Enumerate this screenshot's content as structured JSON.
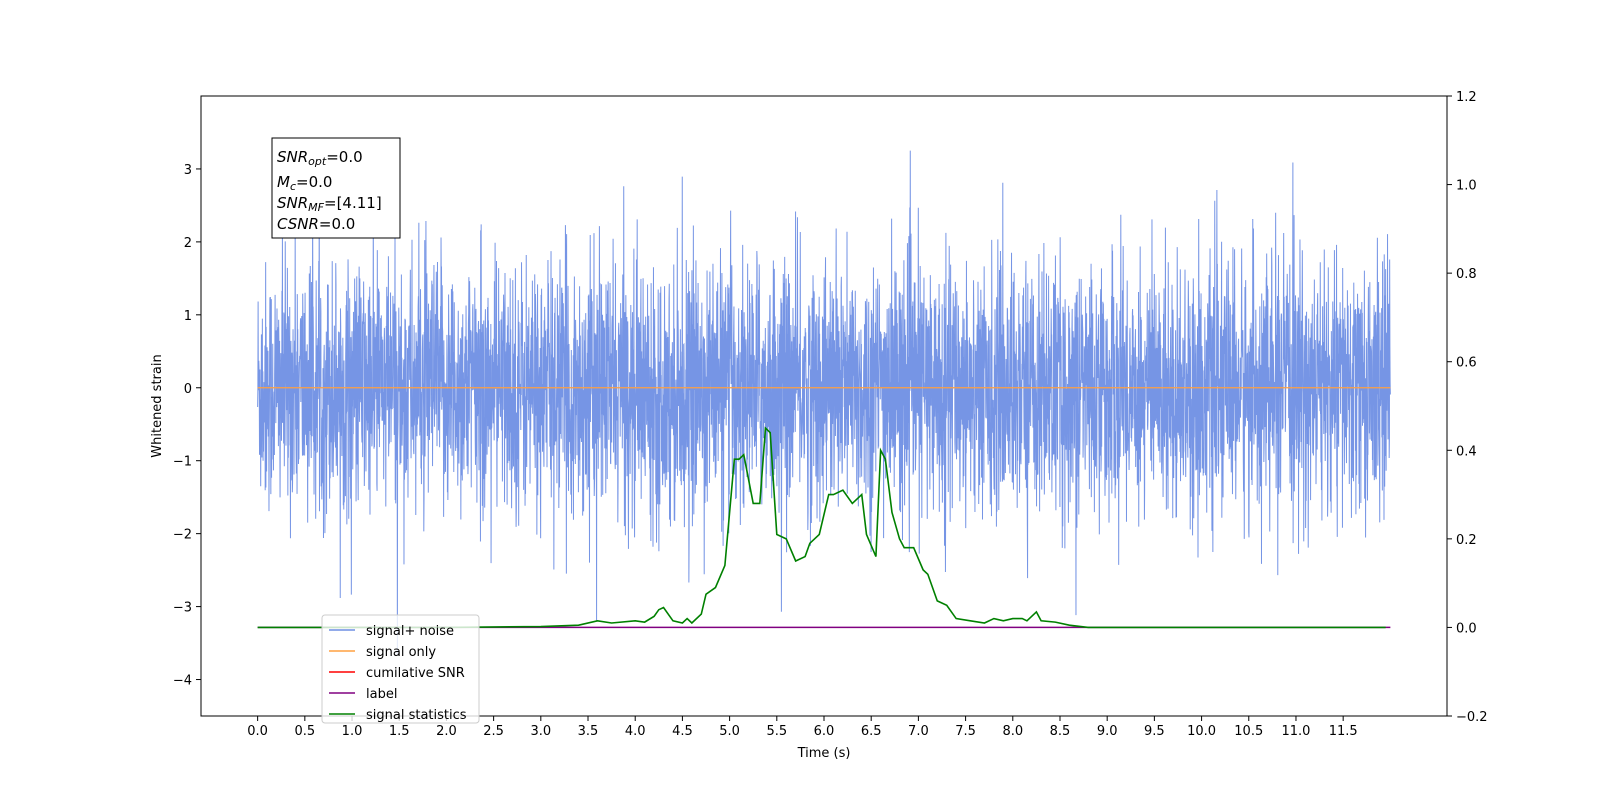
{
  "chart_data": {
    "type": "line",
    "xlabel": "Time (s)",
    "ylabel": "Whitened strain",
    "xlim": [
      -0.6,
      12.6
    ],
    "ylim": [
      -4.5,
      4.0
    ],
    "y2lim": [
      -0.2,
      1.2
    ],
    "grid": false,
    "legend_position": "lower-left",
    "x_ticks": [
      "0.0",
      "0.5",
      "1.0",
      "1.5",
      "2.0",
      "2.5",
      "3.0",
      "3.5",
      "4.0",
      "4.5",
      "5.0",
      "5.5",
      "6.0",
      "6.5",
      "7.0",
      "7.5",
      "8.0",
      "8.5",
      "9.0",
      "9.5",
      "10.0",
      "10.5",
      "11.0",
      "11.5"
    ],
    "y_ticks": [
      "3",
      "2",
      "1",
      "0",
      "−1",
      "−2",
      "−3",
      "−4"
    ],
    "y2_ticks": [
      "1.2",
      "1.0",
      "0.8",
      "0.6",
      "0.4",
      "0.2",
      "0.0",
      "−0.2"
    ],
    "annotation": {
      "snr_opt_sym": "SNR",
      "snr_opt_sub": "opt",
      "snr_opt_val": "=0.0",
      "mc_sym": "M",
      "mc_sub": "c",
      "mc_val": "=0.0",
      "snr_mf_sym": "SNR",
      "snr_mf_sub": "MF",
      "snr_mf_val": "=[4.11]",
      "csnr_sym": "CSNR",
      "csnr_val": "=0.0"
    },
    "series": [
      {
        "name": "signal+ noise",
        "color": "#6f8fe4",
        "axis": "left",
        "x_range": [
          0.0,
          12.0
        ],
        "amplitude_hint": "noise within about ±2.5 with spikes reaching 3.6 and -4.1"
      },
      {
        "name": "signal only",
        "color": "#ffa040",
        "axis": "left",
        "values_note": "flat at 0",
        "x": [
          0.0,
          12.0
        ],
        "y": [
          0.0,
          0.0
        ]
      },
      {
        "name": "cumilative SNR",
        "color": "#ff0000",
        "axis": "right",
        "x": [],
        "y": []
      },
      {
        "name": "label",
        "color": "#800080",
        "axis": "right",
        "x": [
          0.0,
          12.0
        ],
        "y": [
          0.0,
          0.0
        ]
      },
      {
        "name": "signal statistics",
        "color": "#008000",
        "axis": "right",
        "x": [
          0.0,
          2.0,
          3.0,
          3.4,
          3.6,
          3.75,
          4.0,
          4.1,
          4.2,
          4.25,
          4.3,
          4.4,
          4.5,
          4.55,
          4.6,
          4.7,
          4.75,
          4.85,
          4.95,
          5.05,
          5.1,
          5.15,
          5.25,
          5.32,
          5.38,
          5.43,
          5.5,
          5.6,
          5.7,
          5.8,
          5.85,
          5.95,
          6.05,
          6.1,
          6.2,
          6.3,
          6.4,
          6.45,
          6.55,
          6.6,
          6.65,
          6.72,
          6.8,
          6.85,
          6.95,
          7.05,
          7.1,
          7.2,
          7.3,
          7.4,
          7.55,
          7.7,
          7.8,
          7.9,
          8.0,
          8.1,
          8.15,
          8.25,
          8.3,
          8.45,
          8.6,
          8.8,
          9.0,
          10.0,
          11.0,
          11.95
        ],
        "y": [
          0.0,
          0.0,
          0.002,
          0.005,
          0.015,
          0.01,
          0.015,
          0.012,
          0.025,
          0.04,
          0.045,
          0.015,
          0.01,
          0.02,
          0.01,
          0.03,
          0.075,
          0.09,
          0.14,
          0.38,
          0.38,
          0.39,
          0.28,
          0.28,
          0.45,
          0.44,
          0.21,
          0.2,
          0.15,
          0.16,
          0.19,
          0.21,
          0.3,
          0.3,
          0.31,
          0.28,
          0.3,
          0.21,
          0.16,
          0.4,
          0.38,
          0.26,
          0.2,
          0.18,
          0.18,
          0.13,
          0.12,
          0.06,
          0.05,
          0.02,
          0.015,
          0.01,
          0.02,
          0.015,
          0.02,
          0.02,
          0.015,
          0.035,
          0.015,
          0.012,
          0.005,
          0.0,
          0.0,
          0.0,
          0.0,
          0.0
        ]
      }
    ]
  }
}
